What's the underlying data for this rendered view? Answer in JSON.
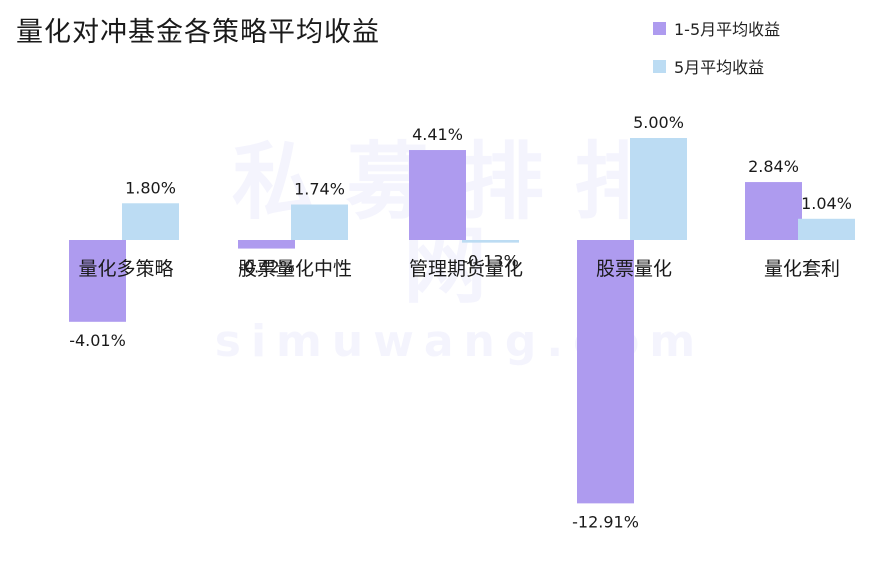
{
  "colors": {
    "series1": "#ae9bef",
    "series2": "#bcdcf3",
    "text": "#1a1a1a"
  },
  "watermark": {
    "main": "私募排排网",
    "sub": "simuwang.com"
  },
  "chart_data": {
    "type": "bar",
    "title": "量化对冲基金各策略平均收益",
    "categories": [
      "量化多策略",
      "股票量化中性",
      "管理期货量化",
      "股票量化",
      "量化套利"
    ],
    "series": [
      {
        "name": "1-5月平均收益",
        "values": [
          -4.01,
          -0.42,
          4.41,
          -12.91,
          2.84
        ],
        "labels": [
          "-4.01%",
          "-0.42%",
          "4.41%",
          "-12.91%",
          "2.84%"
        ]
      },
      {
        "name": "5月平均收益",
        "values": [
          1.8,
          1.74,
          -0.13,
          5.0,
          1.04
        ],
        "labels": [
          "1.80%",
          "1.74%",
          "-0.13%",
          "5.00%",
          "1.04%"
        ]
      }
    ],
    "legend_position": "top-right",
    "grid": false
  }
}
